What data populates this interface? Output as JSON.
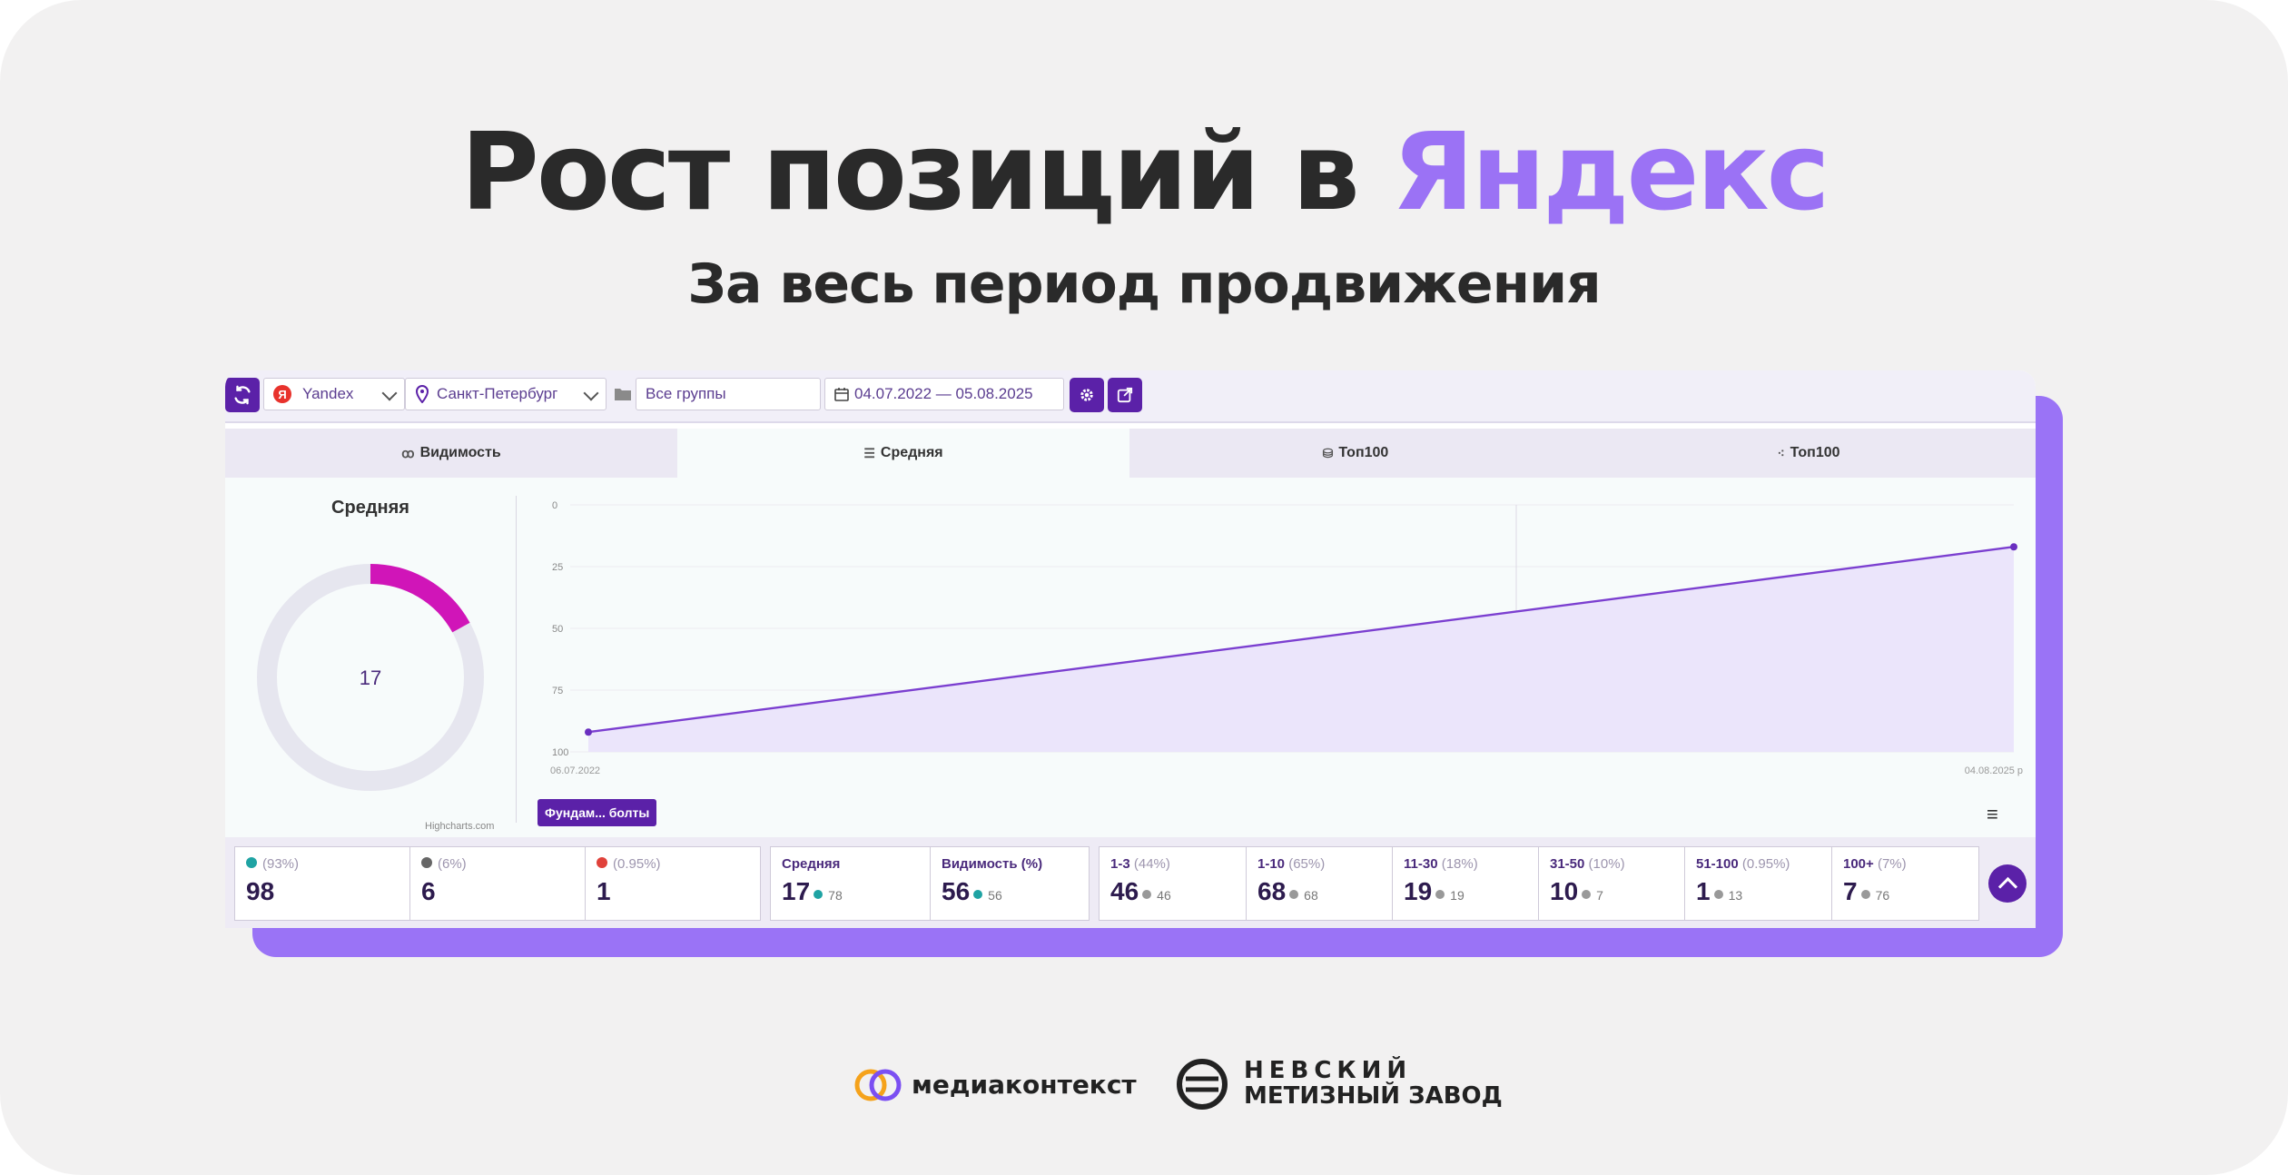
{
  "title": {
    "part1": "Рост позиций в ",
    "accent": "Яндекс"
  },
  "subtitle": "За весь период продвижения",
  "colors": {
    "accent": "#9b72f5",
    "brand": "#5b21a8",
    "donut_arc": "#d015b8",
    "line": "#7b3fd0"
  },
  "toolbar": {
    "search_engine": "Yandex",
    "region": "Санкт-Петербург",
    "group": "Все группы",
    "date_range": "04.07.2022 — 05.08.2025"
  },
  "tabs": [
    {
      "label": "Видимость",
      "icon": "glasses-icon"
    },
    {
      "label": "Средняя",
      "icon": "list-icon"
    },
    {
      "label": "Топ100",
      "icon": "database-icon"
    },
    {
      "label": "Топ100",
      "icon": "scatter-icon"
    }
  ],
  "donut": {
    "title": "Средняя",
    "value": "17",
    "fraction": 0.17,
    "credits": "Highcharts.com"
  },
  "chart_data": {
    "type": "area",
    "x": [
      "06.07.2022",
      "04.08.2025 р"
    ],
    "y": [
      92,
      17
    ],
    "ylim": [
      0,
      100
    ],
    "y_reversed": true,
    "yticks": [
      "0",
      "25",
      "50",
      "75",
      "100"
    ],
    "xticks": [
      "06.07.2022",
      "04.08.2025 р"
    ],
    "grid": true,
    "series": [
      {
        "values": [
          92,
          17
        ]
      }
    ]
  },
  "filter_tag": "Фундам... болты",
  "stats": {
    "group1": [
      {
        "icon": "plus-circle-icon",
        "pct": "(93%)",
        "value": "98",
        "color": "#1fa3a3"
      },
      {
        "icon": "minus-circle-icon",
        "pct": "(6%)",
        "value": "6",
        "color": "#666666"
      },
      {
        "icon": "plus-red-circle-icon",
        "pct": "(0.95%)",
        "value": "1",
        "color": "#e0413a"
      }
    ],
    "group2": [
      {
        "label": "Средняя",
        "value": "17",
        "sub": "78",
        "sub_color": "#1fa3a3"
      },
      {
        "label": "Видимость (%)",
        "value": "56",
        "sub": "56",
        "sub_color": "#1fa3a3"
      }
    ],
    "group3": [
      {
        "label": "1-3",
        "pct": "(44%)",
        "value": "46",
        "sub": "46"
      },
      {
        "label": "1-10",
        "pct": "(65%)",
        "value": "68",
        "sub": "68"
      },
      {
        "label": "11-30",
        "pct": "(18%)",
        "value": "19",
        "sub": "19"
      },
      {
        "label": "31-50",
        "pct": "(10%)",
        "value": "10",
        "sub": "7"
      },
      {
        "label": "51-100",
        "pct": "(0.95%)",
        "value": "1",
        "sub": "13"
      },
      {
        "label": "100+",
        "pct": "(7%)",
        "value": "7",
        "sub": "76"
      }
    ]
  },
  "logos": {
    "mediacontext": "медиаконтекст",
    "nevsky_line1": "НЕВСКИЙ",
    "nevsky_line2": "МЕТИЗНЫЙ ЗАВОД"
  }
}
